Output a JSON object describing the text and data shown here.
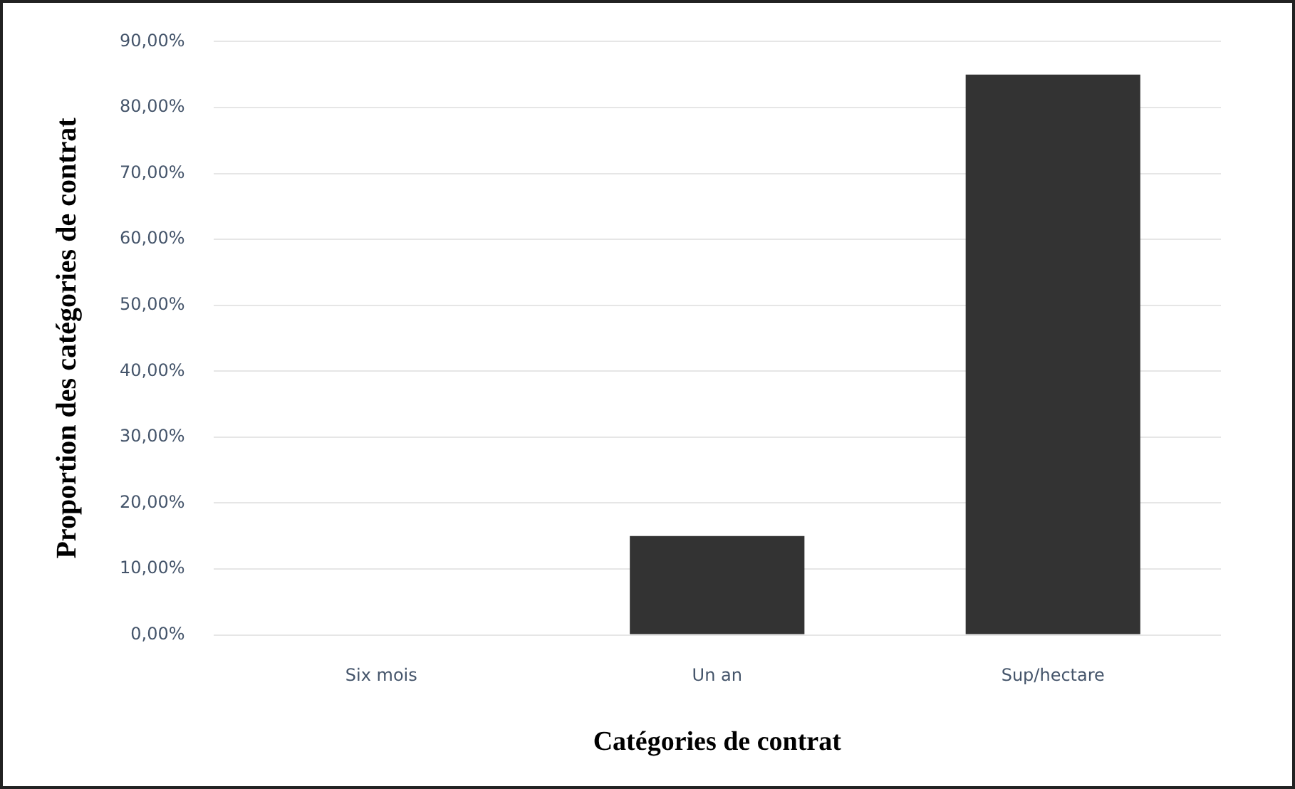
{
  "chart_data": {
    "type": "bar",
    "xlabel": "Catégories de contrat",
    "ylabel": "Proportion des catégories de contrat",
    "categories": [
      "Six mois",
      "Un an",
      "Sup/hectare"
    ],
    "values": [
      0,
      15,
      85
    ],
    "color": "#333333",
    "ylim": [
      0,
      90
    ],
    "yticks": [
      {
        "value": 0,
        "label": "0,00%"
      },
      {
        "value": 10,
        "label": "10,00%"
      },
      {
        "value": 20,
        "label": "20,00%"
      },
      {
        "value": 30,
        "label": "30,00%"
      },
      {
        "value": 40,
        "label": "40,00%"
      },
      {
        "value": 50,
        "label": "50,00%"
      },
      {
        "value": 60,
        "label": "60,00%"
      },
      {
        "value": 70,
        "label": "70,00%"
      },
      {
        "value": 80,
        "label": "80,00%"
      },
      {
        "value": 90,
        "label": "90,00%"
      }
    ],
    "grid": "y",
    "legend": false
  }
}
